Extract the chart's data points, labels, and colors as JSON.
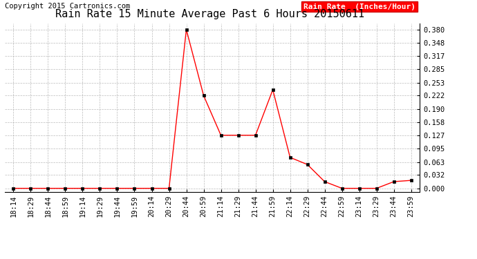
{
  "title": "Rain Rate 15 Minute Average Past 6 Hours 20150611",
  "copyright": "Copyright 2015 Cartronics.com",
  "legend_label": "Rain Rate  (Inches/Hour)",
  "x_labels": [
    "18:14",
    "18:29",
    "18:44",
    "18:59",
    "19:14",
    "19:29",
    "19:44",
    "19:59",
    "20:14",
    "20:29",
    "20:44",
    "20:59",
    "21:14",
    "21:29",
    "21:44",
    "21:59",
    "22:14",
    "22:29",
    "22:44",
    "22:59",
    "23:14",
    "23:29",
    "23:44",
    "23:59"
  ],
  "y_values": [
    0.0,
    0.0,
    0.0,
    0.0,
    0.0,
    0.0,
    0.0,
    0.0,
    0.0,
    0.0,
    0.38,
    0.222,
    0.127,
    0.127,
    0.127,
    0.236,
    0.074,
    0.057,
    0.016,
    0.0,
    0.0,
    0.0,
    0.016,
    0.019
  ],
  "y_ticks": [
    0.0,
    0.032,
    0.063,
    0.095,
    0.127,
    0.158,
    0.19,
    0.222,
    0.253,
    0.285,
    0.317,
    0.348,
    0.38
  ],
  "line_color": "#ff0000",
  "marker_color": "#000000",
  "bg_color": "#ffffff",
  "grid_color": "#aaaaaa",
  "title_color": "#000000",
  "legend_bg": "#ff0000",
  "legend_text_color": "#ffffff",
  "ylim": [
    -0.008,
    0.395
  ],
  "title_fontsize": 11,
  "copyright_fontsize": 7.5,
  "tick_fontsize": 7.5,
  "legend_fontsize": 8
}
